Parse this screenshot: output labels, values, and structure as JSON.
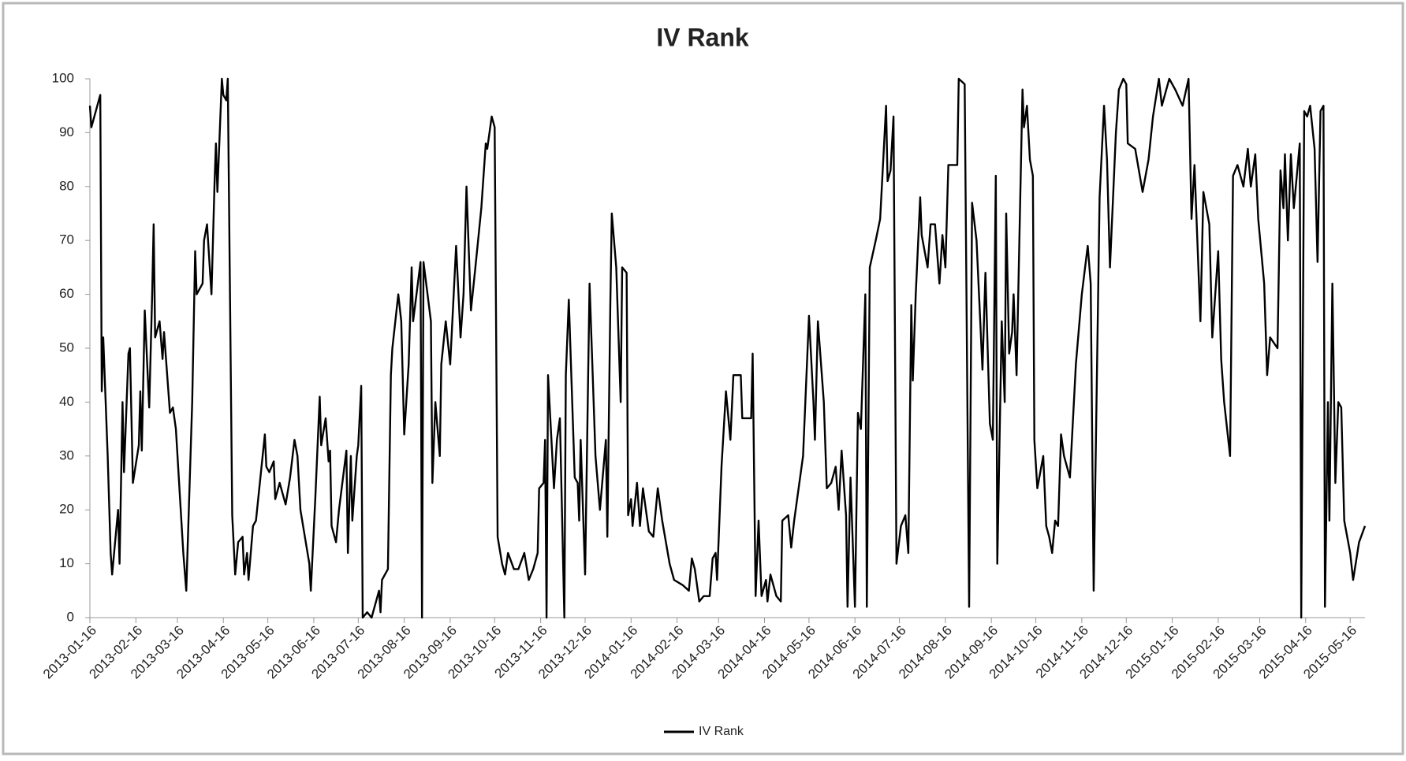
{
  "chart_data": {
    "type": "line",
    "title": "IV Rank",
    "x": [
      "2013-01-16",
      "2013-01-17",
      "2013-01-22",
      "2013-01-23",
      "2013-01-24",
      "2013-01-25",
      "2013-01-28",
      "2013-01-30",
      "2013-01-31",
      "2013-02-04",
      "2013-02-05",
      "2013-02-07",
      "2013-02-08",
      "2013-02-11",
      "2013-02-12",
      "2013-02-14",
      "2013-02-18",
      "2013-02-19",
      "2013-02-20",
      "2013-02-22",
      "2013-02-25",
      "2013-02-27",
      "2013-02-28",
      "2013-03-01",
      "2013-03-04",
      "2013-03-06",
      "2013-03-07",
      "2013-03-11",
      "2013-03-13",
      "2013-03-15",
      "2013-03-20",
      "2013-03-22",
      "2013-03-26",
      "2013-03-28",
      "2013-03-29",
      "2013-04-02",
      "2013-04-03",
      "2013-04-05",
      "2013-04-08",
      "2013-04-10",
      "2013-04-11",
      "2013-04-12",
      "2013-04-15",
      "2013-04-16",
      "2013-04-18",
      "2013-04-19",
      "2013-04-22",
      "2013-04-24",
      "2013-04-26",
      "2013-04-29",
      "2013-04-30",
      "2013-05-02",
      "2013-05-03",
      "2013-05-06",
      "2013-05-08",
      "2013-05-14",
      "2013-05-15",
      "2013-05-17",
      "2013-05-20",
      "2013-05-21",
      "2013-05-24",
      "2013-05-28",
      "2013-05-31",
      "2013-06-03",
      "2013-06-05",
      "2013-06-07",
      "2013-06-10",
      "2013-06-13",
      "2013-06-14",
      "2013-06-17",
      "2013-06-20",
      "2013-06-21",
      "2013-06-24",
      "2013-06-26",
      "2013-06-27",
      "2013-06-28",
      "2013-07-01",
      "2013-07-03",
      "2013-07-08",
      "2013-07-09",
      "2013-07-11",
      "2013-07-12",
      "2013-07-15",
      "2013-07-16",
      "2013-07-18",
      "2013-07-19",
      "2013-07-22",
      "2013-07-25",
      "2013-07-30",
      "2013-07-31",
      "2013-08-01",
      "2013-08-05",
      "2013-08-07",
      "2013-08-08",
      "2013-08-12",
      "2013-08-14",
      "2013-08-16",
      "2013-08-19",
      "2013-08-21",
      "2013-08-22",
      "2013-08-27",
      "2013-08-28",
      "2013-08-29",
      "2013-09-03",
      "2013-09-04",
      "2013-09-06",
      "2013-09-09",
      "2013-09-10",
      "2013-09-13",
      "2013-09-16",
      "2013-09-18",
      "2013-09-20",
      "2013-09-23",
      "2013-09-25",
      "2013-09-27",
      "2013-09-30",
      "2013-10-03",
      "2013-10-07",
      "2013-10-10",
      "2013-10-11",
      "2013-10-14",
      "2013-10-16",
      "2013-10-18",
      "2013-10-21",
      "2013-10-23",
      "2013-10-25",
      "2013-10-29",
      "2013-11-01",
      "2013-11-05",
      "2013-11-08",
      "2013-11-11",
      "2013-11-14",
      "2013-11-15",
      "2013-11-18",
      "2013-11-19",
      "2013-11-20",
      "2013-11-21",
      "2013-11-25",
      "2013-11-27",
      "2013-11-29",
      "2013-12-02",
      "2013-12-03",
      "2013-12-05",
      "2013-12-09",
      "2013-12-11",
      "2013-12-12",
      "2013-12-13",
      "2013-12-16",
      "2013-12-19",
      "2013-12-23",
      "2013-12-26",
      "2013-12-30",
      "2013-12-31",
      "2014-01-02",
      "2014-01-03",
      "2014-01-06",
      "2014-01-09",
      "2014-01-10",
      "2014-01-13",
      "2014-01-14",
      "2014-01-16",
      "2014-01-17",
      "2014-01-20",
      "2014-01-22",
      "2014-01-24",
      "2014-01-28",
      "2014-01-31",
      "2014-02-03",
      "2014-02-06",
      "2014-02-11",
      "2014-02-14",
      "2014-02-20",
      "2014-02-24",
      "2014-02-26",
      "2014-02-28",
      "2014-03-03",
      "2014-03-06",
      "2014-03-10",
      "2014-03-12",
      "2014-03-14",
      "2014-03-15",
      "2014-03-18",
      "2014-03-21",
      "2014-03-24",
      "2014-03-26",
      "2014-03-31",
      "2014-04-01",
      "2014-04-07",
      "2014-04-08",
      "2014-04-10",
      "2014-04-12",
      "2014-04-14",
      "2014-04-17",
      "2014-04-18",
      "2014-04-20",
      "2014-04-24",
      "2014-04-27",
      "2014-04-28",
      "2014-05-02",
      "2014-05-04",
      "2014-05-06",
      "2014-05-12",
      "2014-05-16",
      "2014-05-19",
      "2014-05-20",
      "2014-05-22",
      "2014-05-26",
      "2014-05-28",
      "2014-05-31",
      "2014-06-03",
      "2014-06-05",
      "2014-06-07",
      "2014-06-10",
      "2014-06-11",
      "2014-06-13",
      "2014-06-16",
      "2014-06-18",
      "2014-06-20",
      "2014-06-23",
      "2014-06-24",
      "2014-06-26",
      "2014-06-30",
      "2014-07-03",
      "2014-07-07",
      "2014-07-08",
      "2014-07-10",
      "2014-07-12",
      "2014-07-14",
      "2014-07-17",
      "2014-07-20",
      "2014-07-22",
      "2014-07-24",
      "2014-07-25",
      "2014-07-27",
      "2014-07-30",
      "2014-07-31",
      "2014-08-04",
      "2014-08-06",
      "2014-08-09",
      "2014-08-12",
      "2014-08-14",
      "2014-08-16",
      "2014-08-18",
      "2014-08-20",
      "2014-08-24",
      "2014-08-25",
      "2014-08-29",
      "2014-09-01",
      "2014-09-03",
      "2014-09-06",
      "2014-09-10",
      "2014-09-12",
      "2014-09-15",
      "2014-09-17",
      "2014-09-19",
      "2014-09-20",
      "2014-09-23",
      "2014-09-25",
      "2014-09-26",
      "2014-09-28",
      "2014-09-30",
      "2014-10-01",
      "2014-10-03",
      "2014-10-07",
      "2014-10-08",
      "2014-10-10",
      "2014-10-12",
      "2014-10-14",
      "2014-10-15",
      "2014-10-17",
      "2014-10-21",
      "2014-10-23",
      "2014-10-25",
      "2014-10-27",
      "2014-10-29",
      "2014-10-31",
      "2014-11-02",
      "2014-11-04",
      "2014-11-08",
      "2014-11-12",
      "2014-11-16",
      "2014-11-20",
      "2014-11-22",
      "2014-11-24",
      "2014-11-28",
      "2014-12-01",
      "2014-12-03",
      "2014-12-05",
      "2014-12-09",
      "2014-12-11",
      "2014-12-14",
      "2014-12-16",
      "2014-12-17",
      "2014-12-22",
      "2014-12-27",
      "2014-12-31",
      "2015-01-03",
      "2015-01-07",
      "2015-01-09",
      "2015-01-12",
      "2015-01-14",
      "2015-01-18",
      "2015-01-23",
      "2015-01-27",
      "2015-01-29",
      "2015-01-31",
      "2015-02-04",
      "2015-02-06",
      "2015-02-10",
      "2015-02-12",
      "2015-02-16",
      "2015-02-18",
      "2015-02-20",
      "2015-02-24",
      "2015-02-26",
      "2015-03-01",
      "2015-03-05",
      "2015-03-08",
      "2015-03-10",
      "2015-03-13",
      "2015-03-15",
      "2015-03-19",
      "2015-03-21",
      "2015-03-23",
      "2015-03-28",
      "2015-03-30",
      "2015-04-01",
      "2015-04-02",
      "2015-04-04",
      "2015-04-06",
      "2015-04-08",
      "2015-04-12",
      "2015-04-13",
      "2015-04-15",
      "2015-04-17",
      "2015-04-19",
      "2015-04-22",
      "2015-04-24",
      "2015-04-26",
      "2015-04-28",
      "2015-04-29",
      "2015-05-01",
      "2015-05-02",
      "2015-05-04",
      "2015-05-06",
      "2015-05-08",
      "2015-05-10",
      "2015-05-12",
      "2015-05-16",
      "2015-05-18",
      "2015-05-22",
      "2015-05-26"
    ],
    "series": [
      {
        "name": "IV Rank",
        "color": "#000000",
        "values": [
          95,
          91,
          96,
          97,
          42,
          52,
          30,
          12,
          8,
          20,
          10,
          40,
          27,
          49,
          50,
          25,
          32,
          42,
          31,
          57,
          39,
          60,
          73,
          52,
          55,
          48,
          53,
          38,
          39,
          35,
          12,
          5,
          40,
          68,
          60,
          62,
          70,
          73,
          60,
          80,
          88,
          79,
          100,
          97,
          96,
          100,
          19,
          8,
          14,
          15,
          8,
          12,
          7,
          17,
          18,
          34,
          28,
          27,
          29,
          22,
          25,
          21,
          26,
          33,
          30,
          20,
          15,
          10,
          5,
          22,
          41,
          32,
          37,
          29,
          31,
          17,
          14,
          20,
          31,
          12,
          30,
          18,
          30,
          32,
          43,
          0,
          1,
          0,
          5,
          1,
          7,
          9,
          45,
          50,
          60,
          55,
          34,
          47,
          65,
          55,
          66,
          0,
          66,
          55,
          25,
          40,
          30,
          47,
          55,
          47,
          58,
          69,
          52,
          60,
          80,
          57,
          65,
          76,
          88,
          87,
          93,
          91,
          15,
          10,
          8,
          12,
          9,
          9,
          12,
          7,
          9,
          12,
          24,
          25,
          33,
          0,
          45,
          24,
          33,
          37,
          0,
          45,
          59,
          26,
          25,
          18,
          33,
          8,
          62,
          30,
          20,
          33,
          15,
          58,
          75,
          65,
          40,
          65,
          64,
          19,
          22,
          17,
          25,
          17,
          24,
          16,
          15,
          24,
          18,
          10,
          7,
          6,
          5,
          11,
          9,
          3,
          4,
          4,
          11,
          12,
          7,
          28,
          42,
          33,
          45,
          45,
          37,
          37,
          49,
          4,
          18,
          4,
          7,
          3,
          8,
          4,
          3,
          18,
          19,
          13,
          18,
          30,
          56,
          40,
          33,
          55,
          40,
          24,
          25,
          28,
          20,
          31,
          19,
          2,
          26,
          2,
          38,
          35,
          60,
          2,
          65,
          70,
          74,
          95,
          81,
          83,
          93,
          10,
          17,
          19,
          12,
          58,
          44,
          60,
          78,
          71,
          65,
          73,
          73,
          62,
          71,
          65,
          84,
          84,
          84,
          100,
          99,
          2,
          77,
          70,
          46,
          64,
          36,
          33,
          82,
          10,
          55,
          40,
          75,
          49,
          53,
          60,
          45,
          98,
          91,
          95,
          85,
          82,
          33,
          24,
          30,
          17,
          15,
          12,
          18,
          17,
          34,
          30,
          26,
          47,
          60,
          69,
          62,
          5,
          78,
          95,
          85,
          65,
          90,
          98,
          100,
          99,
          88,
          87,
          79,
          85,
          93,
          100,
          95,
          98,
          100,
          98,
          95,
          100,
          74,
          84,
          55,
          79,
          73,
          52,
          68,
          48,
          40,
          30,
          82,
          84,
          80,
          87,
          80,
          86,
          74,
          62,
          45,
          52,
          50,
          83,
          76,
          86,
          70,
          86,
          76,
          88,
          0,
          94,
          93,
          95,
          87,
          66,
          94,
          95,
          2,
          40,
          18,
          62,
          25,
          40,
          39,
          18,
          12,
          7,
          14,
          17
        ]
      }
    ],
    "xlim": [
      "2013-01-16",
      "2015-05-26"
    ],
    "xticks": [
      "2013-01-16",
      "2013-02-16",
      "2013-03-16",
      "2013-04-16",
      "2013-05-16",
      "2013-06-16",
      "2013-07-16",
      "2013-08-16",
      "2013-09-16",
      "2013-10-16",
      "2013-11-16",
      "2013-12-16",
      "2014-01-16",
      "2014-02-16",
      "2014-03-16",
      "2014-04-16",
      "2014-05-16",
      "2014-06-16",
      "2014-07-16",
      "2014-08-16",
      "2014-09-16",
      "2014-10-16",
      "2014-11-16",
      "2014-12-16",
      "2015-01-16",
      "2015-02-16",
      "2015-03-16",
      "2015-04-16",
      "2015-05-16"
    ],
    "ylim": [
      0,
      100
    ],
    "yticks": [
      0,
      10,
      20,
      30,
      40,
      50,
      60,
      70,
      80,
      90,
      100
    ],
    "grid": false,
    "legend": "bottom"
  }
}
